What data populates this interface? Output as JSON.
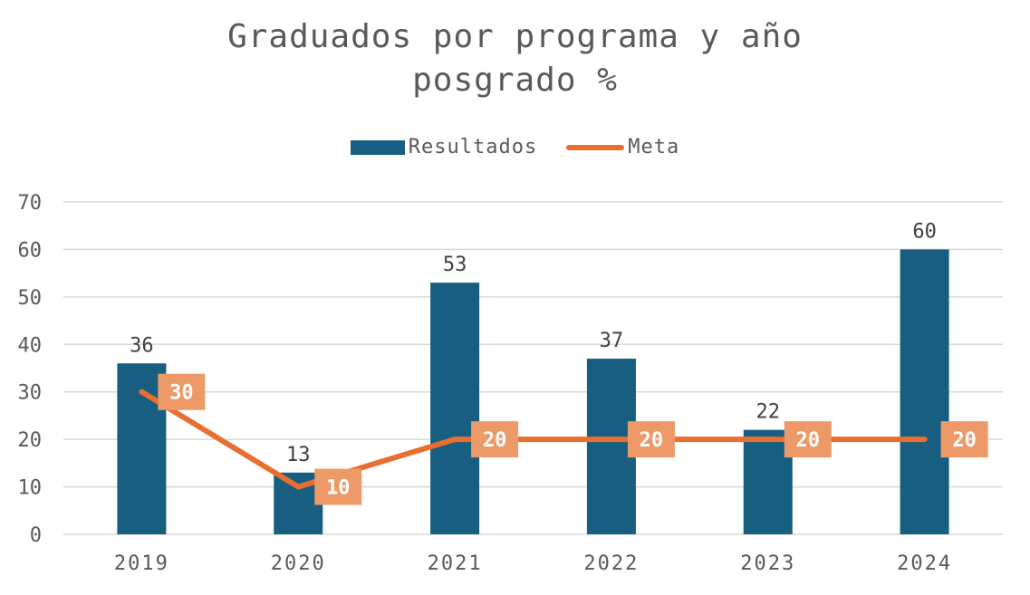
{
  "chart_data": {
    "type": "bar",
    "title_lines": [
      "Graduados por programa y año",
      "posgrado %"
    ],
    "categories": [
      "2019",
      "2020",
      "2021",
      "2022",
      "2023",
      "2024"
    ],
    "series": [
      {
        "name": "Resultados",
        "type": "bar",
        "color": "#175e81",
        "values": [
          36,
          13,
          53,
          37,
          22,
          60
        ]
      },
      {
        "name": "Meta",
        "type": "line",
        "color": "#e86f2f",
        "label_color": "#ed9a68",
        "values": [
          30,
          10,
          20,
          20,
          20,
          20
        ]
      }
    ],
    "ylim": [
      0,
      70
    ],
    "yticks": [
      0,
      10,
      20,
      30,
      40,
      50,
      60,
      70
    ],
    "grid": true,
    "legend_position": "top"
  }
}
